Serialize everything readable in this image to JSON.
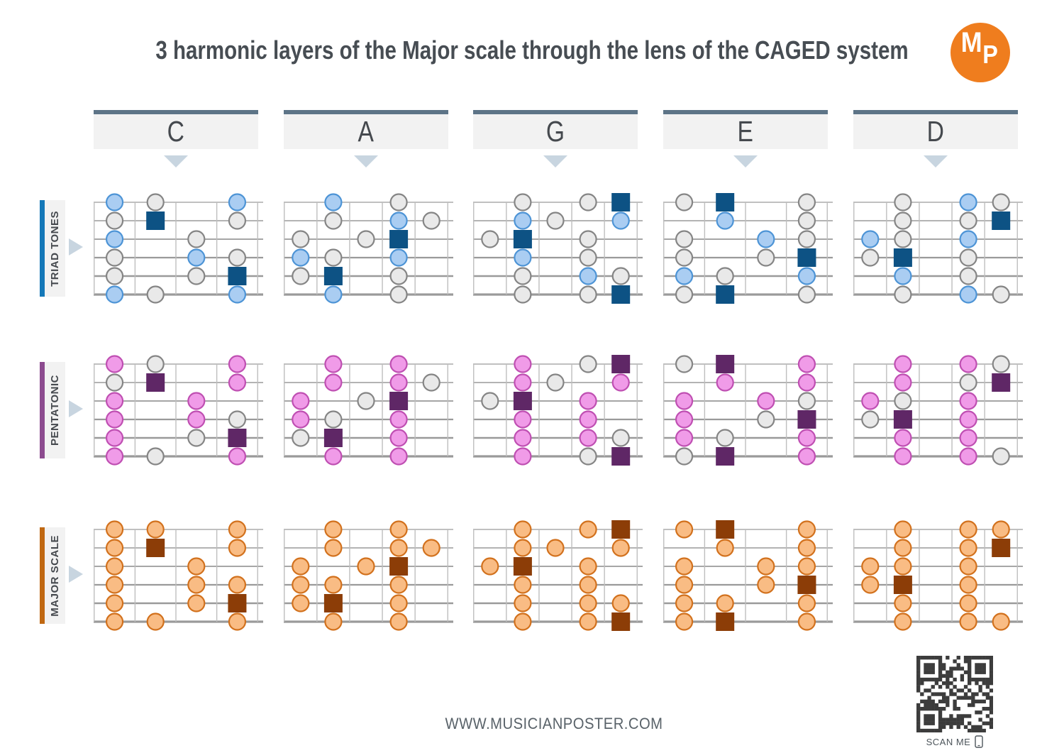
{
  "title": "3 harmonic layers of the Major scale through the lens of the CAGED system",
  "logo": {
    "text": "MP"
  },
  "header": {
    "columns": [
      "C",
      "A",
      "G",
      "E",
      "D"
    ]
  },
  "row_labels": [
    {
      "label": "TRIAD TONES",
      "bar_color": "#1478b8",
      "style": "triad"
    },
    {
      "label": "PENTATONIC",
      "bar_color": "#8c4b8f",
      "style": "penta"
    },
    {
      "label": "MAJOR SCALE",
      "bar_color": "#c06812",
      "style": "major"
    }
  ],
  "note_styles": {
    "triad": {
      "root_fill": "#0d5284",
      "on_fill": "#aacdf2",
      "on_stroke": "#4d94d6",
      "highlight": [
        "triad"
      ]
    },
    "penta": {
      "root_fill": "#5f2766",
      "on_fill": "#f09be8",
      "on_stroke": "#bf4fb2",
      "highlight": [
        "triad",
        "penta"
      ]
    },
    "major": {
      "root_fill": "#8c3d07",
      "on_fill": "#f9bc84",
      "on_stroke": "#d2711d",
      "highlight": [
        "triad",
        "penta",
        "other"
      ]
    }
  },
  "colors": {
    "off_fill": "#e9e9e9",
    "off_stroke": "#858585",
    "header_bar": "#5d7487",
    "triangle": "#c8d5e0",
    "label_bg": "#f2f2f2",
    "text_dark": "#45494e",
    "logo_orange": "#ef7d1e",
    "qr_dark": "#3c3c3c",
    "string": "#9a9a9a",
    "fret": "#bebebe"
  },
  "shapes": {
    "C": {
      "frets": 4,
      "notes": [
        [
          1,
          1,
          "triad"
        ],
        [
          1,
          2,
          "other"
        ],
        [
          1,
          4,
          "triad"
        ],
        [
          2,
          1,
          "other"
        ],
        [
          2,
          2,
          "root"
        ],
        [
          2,
          4,
          "penta"
        ],
        [
          3,
          1,
          "triad"
        ],
        [
          3,
          3,
          "penta"
        ],
        [
          4,
          1,
          "penta"
        ],
        [
          4,
          3,
          "triad"
        ],
        [
          4,
          4,
          "other"
        ],
        [
          5,
          1,
          "penta"
        ],
        [
          5,
          3,
          "other"
        ],
        [
          5,
          4,
          "root"
        ],
        [
          6,
          1,
          "triad"
        ],
        [
          6,
          2,
          "other"
        ],
        [
          6,
          4,
          "triad"
        ]
      ]
    },
    "A": {
      "frets": 5,
      "notes": [
        [
          1,
          2,
          "triad"
        ],
        [
          1,
          4,
          "penta"
        ],
        [
          2,
          2,
          "penta"
        ],
        [
          2,
          4,
          "triad"
        ],
        [
          2,
          5,
          "other"
        ],
        [
          3,
          1,
          "penta"
        ],
        [
          3,
          3,
          "other"
        ],
        [
          3,
          4,
          "root"
        ],
        [
          4,
          1,
          "triad"
        ],
        [
          4,
          2,
          "other"
        ],
        [
          4,
          4,
          "triad"
        ],
        [
          5,
          1,
          "other"
        ],
        [
          5,
          2,
          "root"
        ],
        [
          5,
          4,
          "penta"
        ],
        [
          6,
          2,
          "triad"
        ],
        [
          6,
          4,
          "penta"
        ]
      ]
    },
    "G": {
      "frets": 5,
      "notes": [
        [
          1,
          2,
          "penta"
        ],
        [
          1,
          4,
          "other"
        ],
        [
          1,
          5,
          "root"
        ],
        [
          2,
          2,
          "triad"
        ],
        [
          2,
          3,
          "other"
        ],
        [
          2,
          5,
          "triad"
        ],
        [
          3,
          1,
          "other"
        ],
        [
          3,
          2,
          "root"
        ],
        [
          3,
          4,
          "penta"
        ],
        [
          4,
          2,
          "triad"
        ],
        [
          4,
          4,
          "penta"
        ],
        [
          5,
          2,
          "penta"
        ],
        [
          5,
          4,
          "triad"
        ],
        [
          5,
          5,
          "other"
        ],
        [
          6,
          2,
          "penta"
        ],
        [
          6,
          4,
          "other"
        ],
        [
          6,
          5,
          "root"
        ]
      ]
    },
    "E": {
      "frets": 4,
      "notes": [
        [
          1,
          1,
          "other"
        ],
        [
          1,
          2,
          "root"
        ],
        [
          1,
          4,
          "penta"
        ],
        [
          2,
          2,
          "triad"
        ],
        [
          2,
          4,
          "penta"
        ],
        [
          3,
          1,
          "penta"
        ],
        [
          3,
          3,
          "triad"
        ],
        [
          3,
          4,
          "other"
        ],
        [
          4,
          1,
          "penta"
        ],
        [
          4,
          3,
          "other"
        ],
        [
          4,
          4,
          "root"
        ],
        [
          5,
          1,
          "triad"
        ],
        [
          5,
          2,
          "other"
        ],
        [
          5,
          4,
          "triad"
        ],
        [
          6,
          1,
          "other"
        ],
        [
          6,
          2,
          "root"
        ],
        [
          6,
          4,
          "penta"
        ]
      ]
    },
    "D": {
      "frets": 5,
      "notes": [
        [
          1,
          2,
          "penta"
        ],
        [
          1,
          4,
          "triad"
        ],
        [
          1,
          5,
          "other"
        ],
        [
          2,
          2,
          "penta"
        ],
        [
          2,
          4,
          "other"
        ],
        [
          2,
          5,
          "root"
        ],
        [
          3,
          1,
          "triad"
        ],
        [
          3,
          2,
          "other"
        ],
        [
          3,
          4,
          "triad"
        ],
        [
          4,
          1,
          "other"
        ],
        [
          4,
          2,
          "root"
        ],
        [
          4,
          4,
          "penta"
        ],
        [
          5,
          2,
          "triad"
        ],
        [
          5,
          4,
          "penta"
        ],
        [
          6,
          2,
          "penta"
        ],
        [
          6,
          4,
          "triad"
        ],
        [
          6,
          5,
          "other"
        ]
      ]
    }
  },
  "footer": {
    "website": "WWW.MUSICIANPOSTER.COM",
    "scan_label": "SCAN ME"
  }
}
